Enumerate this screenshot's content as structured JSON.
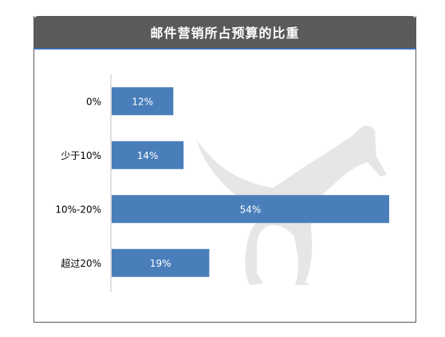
{
  "chart_data": {
    "type": "bar",
    "orientation": "horizontal",
    "title": "邮件营销所占预算的比重",
    "categories": [
      "0%",
      "少于10%",
      "10%-20%",
      "超过20%"
    ],
    "values": [
      12,
      14,
      54,
      19
    ],
    "value_labels": [
      "12%",
      "14%",
      "54%",
      "19%"
    ],
    "xlim": [
      0,
      54
    ],
    "bar_color": "#4a7ebb",
    "grid": false,
    "legend": "none"
  },
  "colors": {
    "header": "#5a5a5a",
    "accent": "#3f6fb0",
    "watermark": "#e6e6e6"
  },
  "watermark_icon": "kangaroo-silhouette"
}
